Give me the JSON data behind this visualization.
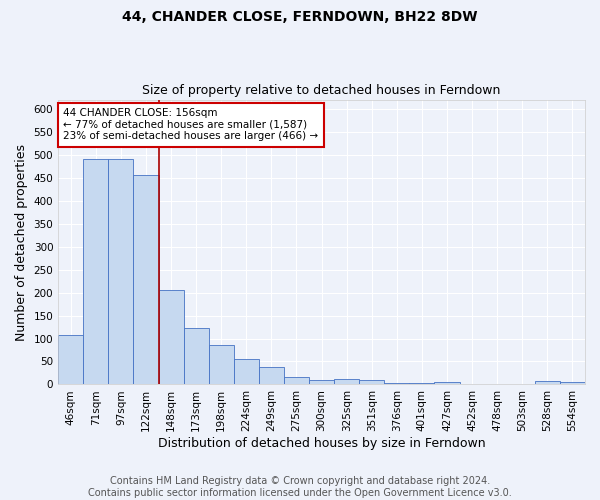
{
  "title": "44, CHANDER CLOSE, FERNDOWN, BH22 8DW",
  "subtitle": "Size of property relative to detached houses in Ferndown",
  "xlabel": "Distribution of detached houses by size in Ferndown",
  "ylabel": "Number of detached properties",
  "footer_line1": "Contains HM Land Registry data © Crown copyright and database right 2024.",
  "footer_line2": "Contains public sector information licensed under the Open Government Licence v3.0.",
  "categories": [
    "46sqm",
    "71sqm",
    "97sqm",
    "122sqm",
    "148sqm",
    "173sqm",
    "198sqm",
    "224sqm",
    "249sqm",
    "275sqm",
    "300sqm",
    "325sqm",
    "351sqm",
    "376sqm",
    "401sqm",
    "427sqm",
    "452sqm",
    "478sqm",
    "503sqm",
    "528sqm",
    "554sqm"
  ],
  "values": [
    107,
    490,
    490,
    455,
    205,
    122,
    85,
    55,
    39,
    17,
    10,
    11,
    10,
    3,
    3,
    6,
    1,
    1,
    1,
    7,
    6
  ],
  "bar_color": "#c6d9f0",
  "bar_edge_color": "#4472c4",
  "red_line_x": 3.5,
  "annotation_text": "44 CHANDER CLOSE: 156sqm\n← 77% of detached houses are smaller (1,587)\n23% of semi-detached houses are larger (466) →",
  "annotation_box_color": "#ffffff",
  "annotation_box_edge_color": "#cc0000",
  "ylim": [
    0,
    620
  ],
  "yticks": [
    0,
    50,
    100,
    150,
    200,
    250,
    300,
    350,
    400,
    450,
    500,
    550,
    600
  ],
  "background_color": "#eef2fa",
  "plot_bg_color": "#eef2fa",
  "grid_color": "#ffffff",
  "title_fontsize": 10,
  "subtitle_fontsize": 9,
  "axis_label_fontsize": 9,
  "tick_fontsize": 7.5,
  "footer_fontsize": 7
}
